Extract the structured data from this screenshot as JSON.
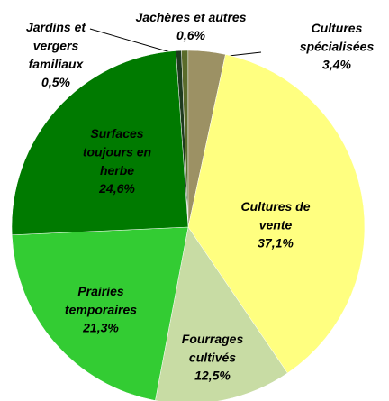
{
  "chart_data": {
    "type": "pie",
    "categories": [
      "Jardins et vergers familiaux",
      "Jachères et autres",
      "Cultures spécialisées",
      "Cultures de vente",
      "Fourrages cultivés",
      "Prairies temporaires",
      "Surfaces toujours en herbe"
    ],
    "values": [
      0.5,
      0.6,
      3.4,
      37.1,
      12.5,
      21.3,
      24.6
    ],
    "value_labels": [
      "0,5%",
      "0,6%",
      "3,4%",
      "37,1%",
      "12,5%",
      "21,3%",
      "24,6%"
    ],
    "colors": [
      "#1e3a1e",
      "#5a6b2a",
      "#9c9164",
      "#ffff80",
      "#c8dca4",
      "#33cc33",
      "#007a00"
    ]
  }
}
